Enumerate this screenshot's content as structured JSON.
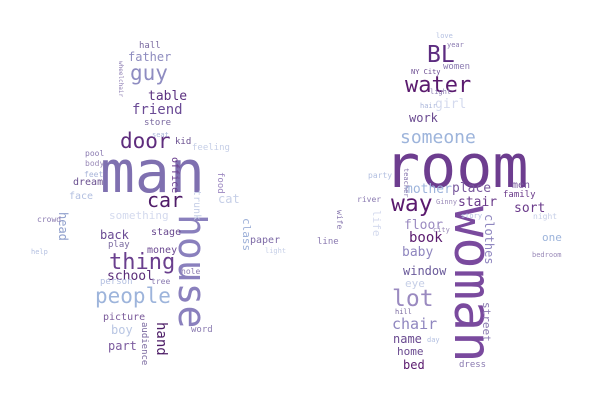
{
  "left_figure": {
    "words": [
      {
        "text": "man",
        "color": "#7f70b0",
        "slot": "a"
      },
      {
        "text": "house",
        "color": "#8a80bd",
        "slot": "b"
      },
      {
        "text": "people",
        "color": "#9db4db",
        "slot": "c"
      },
      {
        "text": "thing",
        "color": "#6a3f8e",
        "slot": "d"
      },
      {
        "text": "door",
        "color": "#5e2c7d",
        "slot": "e"
      },
      {
        "text": "car",
        "color": "#4f1c68",
        "slot": "f"
      },
      {
        "text": "guy",
        "color": "#8e8cc1",
        "slot": "g"
      },
      {
        "text": "friend",
        "color": "#6a4a95",
        "slot": "h"
      },
      {
        "text": "table",
        "color": "#5c3280",
        "slot": "i"
      },
      {
        "text": "father",
        "color": "#8e8cbf",
        "slot": "j"
      },
      {
        "text": "school",
        "color": "#5a2c78",
        "slot": "k"
      },
      {
        "text": "back",
        "color": "#6a4a93",
        "slot": "l"
      },
      {
        "text": "hand",
        "color": "#4c1c66",
        "slot": "m"
      },
      {
        "text": "part",
        "color": "#7b5a9e",
        "slot": "n"
      },
      {
        "text": "picture",
        "color": "#7a5a9a",
        "slot": "o"
      },
      {
        "text": "boy",
        "color": "#b9c6e3",
        "slot": "p"
      },
      {
        "text": "stage",
        "color": "#6a4a90",
        "slot": "q"
      },
      {
        "text": "money",
        "color": "#6c4a92",
        "slot": "r"
      },
      {
        "text": "class",
        "color": "#9db0d8",
        "slot": "s"
      },
      {
        "text": "paper",
        "color": "#7d6aa6",
        "slot": "t"
      },
      {
        "text": "office",
        "color": "#6a3f8e",
        "slot": "u"
      },
      {
        "text": "head",
        "color": "#8f9fcc",
        "slot": "v"
      },
      {
        "text": "face",
        "color": "#b2bfe0",
        "slot": "w"
      },
      {
        "text": "dream",
        "color": "#6a5090",
        "slot": "x"
      },
      {
        "text": "hall",
        "color": "#7a6aa0",
        "slot": "y"
      },
      {
        "text": "store",
        "color": "#7b6aa0",
        "slot": "z"
      },
      {
        "text": "food",
        "color": "#9b86c0",
        "slot": "aa"
      },
      {
        "text": "cat",
        "color": "#c6cfe7",
        "slot": "ab"
      },
      {
        "text": "kid",
        "color": "#6a5090",
        "slot": "ac"
      },
      {
        "text": "audience",
        "color": "#7b6aa0",
        "slot": "ad"
      },
      {
        "text": "person",
        "color": "#b4c0e1",
        "slot": "ae"
      },
      {
        "text": "something",
        "color": "#d4daee",
        "slot": "af"
      },
      {
        "text": "feeling",
        "color": "#c6cfe7",
        "slot": "ag"
      },
      {
        "text": "pool",
        "color": "#8a7ab0",
        "slot": "ah"
      },
      {
        "text": "body",
        "color": "#9a8ab8",
        "slot": "ai"
      },
      {
        "text": "play",
        "color": "#7a6aa0",
        "slot": "aj"
      },
      {
        "text": "crowd",
        "color": "#8a7ab0",
        "slot": "ak"
      },
      {
        "text": "word",
        "color": "#8a7ab0",
        "slot": "al"
      },
      {
        "text": "hole",
        "color": "#8a7ab0",
        "slot": "am"
      },
      {
        "text": "tree",
        "color": "#8a7ab0",
        "slot": "an"
      },
      {
        "text": "feet",
        "color": "#aab6da",
        "slot": "ao"
      },
      {
        "text": "wheelchair",
        "color": "#8a7ab0",
        "slot": "ap"
      },
      {
        "text": "help",
        "color": "#b4c0e1",
        "slot": "aq"
      },
      {
        "text": "seat",
        "color": "#aab6da",
        "slot": "ar"
      },
      {
        "text": "trunk",
        "color": "#c6cfe7",
        "slot": "as"
      },
      {
        "text": "light",
        "color": "#c6cfe7",
        "slot": "at"
      }
    ]
  },
  "right_figure": {
    "words": [
      {
        "text": "room",
        "color": "#6d3d8f",
        "slot": "a"
      },
      {
        "text": "woman",
        "color": "#7a4a9e",
        "slot": "b"
      },
      {
        "text": "water",
        "color": "#5a1a6e",
        "slot": "c"
      },
      {
        "text": "BL",
        "color": "#5c2c80",
        "slot": "d"
      },
      {
        "text": "someone",
        "color": "#9db4db",
        "slot": "e"
      },
      {
        "text": "way",
        "color": "#5a1a6e",
        "slot": "f"
      },
      {
        "text": "lot",
        "color": "#9a8ac0",
        "slot": "g"
      },
      {
        "text": "work",
        "color": "#6a4a90",
        "slot": "h"
      },
      {
        "text": "place",
        "color": "#7a5a9e",
        "slot": "i"
      },
      {
        "text": "mother",
        "color": "#9db4db",
        "slot": "j"
      },
      {
        "text": "stair",
        "color": "#6a3a8a",
        "slot": "k"
      },
      {
        "text": "sort",
        "color": "#6a3a8a",
        "slot": "l"
      },
      {
        "text": "book",
        "color": "#5a1a6e",
        "slot": "m"
      },
      {
        "text": "floor",
        "color": "#9a8ac0",
        "slot": "n"
      },
      {
        "text": "baby",
        "color": "#8f86bf",
        "slot": "o"
      },
      {
        "text": "window",
        "color": "#6a5a9a",
        "slot": "p"
      },
      {
        "text": "chair",
        "color": "#8f86bf",
        "slot": "q"
      },
      {
        "text": "name",
        "color": "#6a4a90",
        "slot": "r"
      },
      {
        "text": "home",
        "color": "#6a4a90",
        "slot": "s"
      },
      {
        "text": "bed",
        "color": "#5a1a6e",
        "slot": "t"
      },
      {
        "text": "clothes",
        "color": "#8f86bf",
        "slot": "u"
      },
      {
        "text": "street",
        "color": "#8a7ab0",
        "slot": "v"
      },
      {
        "text": "men",
        "color": "#7a5a9e",
        "slot": "w"
      },
      {
        "text": "family",
        "color": "#6a3a8a",
        "slot": "x"
      },
      {
        "text": "one",
        "color": "#9db4db",
        "slot": "y"
      },
      {
        "text": "girl",
        "color": "#d4daee",
        "slot": "z"
      },
      {
        "text": "women",
        "color": "#8a7ab0",
        "slot": "aa"
      },
      {
        "text": "eye",
        "color": "#c6cfe7",
        "slot": "ab"
      },
      {
        "text": "line",
        "color": "#8a7ab0",
        "slot": "ac"
      },
      {
        "text": "dress",
        "color": "#8a7ab0",
        "slot": "ad"
      },
      {
        "text": "hill",
        "color": "#7a6aa0",
        "slot": "ae"
      },
      {
        "text": "river",
        "color": "#8a7ab0",
        "slot": "af"
      },
      {
        "text": "party",
        "color": "#b4c0e1",
        "slot": "ag"
      },
      {
        "text": "bedroom",
        "color": "#9a8ab8",
        "slot": "ah"
      },
      {
        "text": "year",
        "color": "#8a7ab0",
        "slot": "ai"
      },
      {
        "text": "night",
        "color": "#c6cfe7",
        "slot": "aj"
      },
      {
        "text": "life",
        "color": "#d4daee",
        "slot": "ak"
      },
      {
        "text": "hair",
        "color": "#aab6da",
        "slot": "al"
      },
      {
        "text": "story",
        "color": "#b4c0e1",
        "slot": "am"
      },
      {
        "text": "light",
        "color": "#8a7ab0",
        "slot": "an"
      },
      {
        "text": "love",
        "color": "#b4c0e1",
        "slot": "ao"
      },
      {
        "text": "wife",
        "color": "#8a7ab0",
        "slot": "ap"
      },
      {
        "text": "NY City",
        "color": "#6a4a90",
        "slot": "aq"
      },
      {
        "text": "Ginny",
        "color": "#9a8ab8",
        "slot": "ar"
      },
      {
        "text": "teacher",
        "color": "#8a7ab0",
        "slot": "as"
      },
      {
        "text": "day",
        "color": "#b4c0e1",
        "slot": "at"
      },
      {
        "text": "city",
        "color": "#9a8ab8",
        "slot": "au"
      }
    ]
  }
}
